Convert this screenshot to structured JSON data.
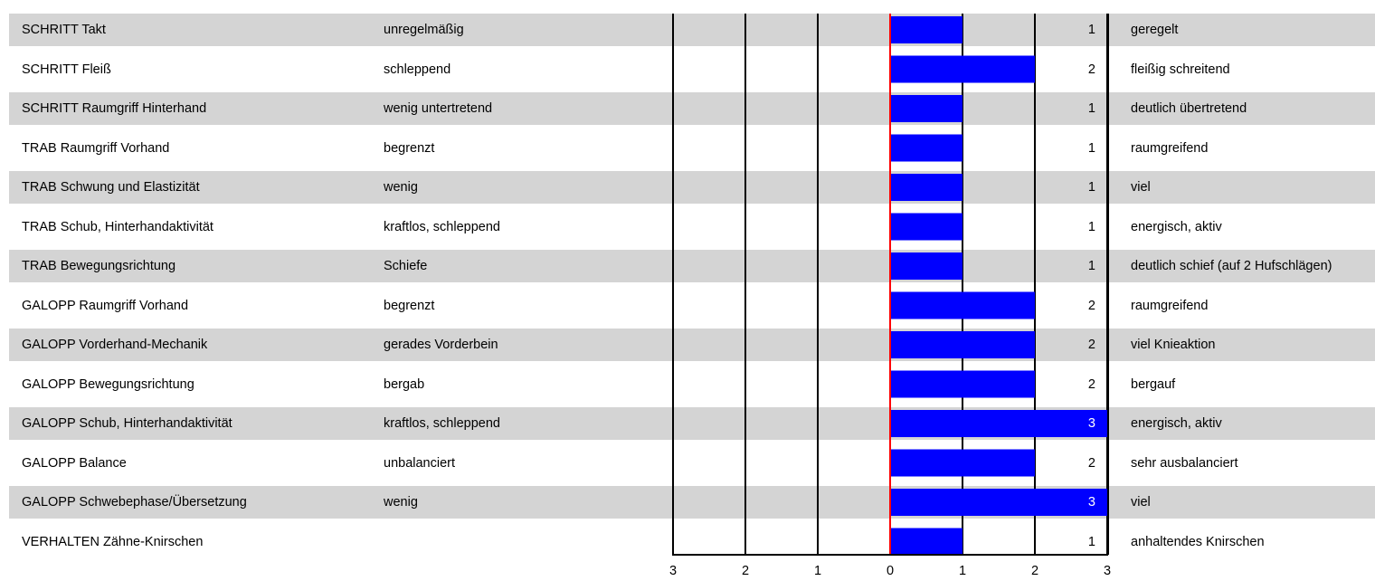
{
  "chart_data": {
    "type": "bar",
    "orientation": "horizontal",
    "xlim": [
      -3,
      3
    ],
    "x_ticks": [
      "3",
      "2",
      "1",
      "0",
      "1",
      "2",
      "3"
    ],
    "grid": true,
    "colors": {
      "bar": "#0000ff",
      "stripe": "#d4d4d4",
      "zero_line": "#ff0000",
      "grid": "#000000",
      "value_on_bar": "#ffffff"
    },
    "rows": [
      {
        "category": "SCHRITT Takt",
        "left_label": "unregelmäßig",
        "right_label": "geregelt",
        "value": 1,
        "value_label": "1"
      },
      {
        "category": "SCHRITT Fleiß",
        "left_label": "schleppend",
        "right_label": "fleißig schreitend",
        "value": 2,
        "value_label": "2"
      },
      {
        "category": "SCHRITT Raumgriff Hinterhand",
        "left_label": "wenig untertretend",
        "right_label": "deutlich übertretend",
        "value": 1,
        "value_label": "1"
      },
      {
        "category": "TRAB Raumgriff Vorhand",
        "left_label": "begrenzt",
        "right_label": "raumgreifend",
        "value": 1,
        "value_label": "1"
      },
      {
        "category": "TRAB Schwung und Elastizität",
        "left_label": "wenig",
        "right_label": "viel",
        "value": 1,
        "value_label": "1"
      },
      {
        "category": "TRAB Schub, Hinterhandaktivität",
        "left_label": "kraftlos, schleppend",
        "right_label": "energisch, aktiv",
        "value": 1,
        "value_label": "1"
      },
      {
        "category": "TRAB Bewegungsrichtung",
        "left_label": "Schiefe",
        "right_label": "deutlich schief (auf 2 Hufschlägen)",
        "value": 1,
        "value_label": "1"
      },
      {
        "category": "GALOPP Raumgriff Vorhand",
        "left_label": "begrenzt",
        "right_label": "raumgreifend",
        "value": 2,
        "value_label": "2"
      },
      {
        "category": "GALOPP Vorderhand-Mechanik",
        "left_label": "gerades Vorderbein",
        "right_label": "viel Knieaktion",
        "value": 2,
        "value_label": "2"
      },
      {
        "category": "GALOPP Bewegungsrichtung",
        "left_label": "bergab",
        "right_label": "bergauf",
        "value": 2,
        "value_label": "2"
      },
      {
        "category": "GALOPP Schub, Hinterhandaktivität",
        "left_label": "kraftlos, schleppend",
        "right_label": "energisch, aktiv",
        "value": 3,
        "value_label": "3"
      },
      {
        "category": "GALOPP Balance",
        "left_label": "unbalanciert",
        "right_label": "sehr ausbalanciert",
        "value": 2,
        "value_label": "2"
      },
      {
        "category": "GALOPP Schwebephase/Übersetzung",
        "left_label": "wenig",
        "right_label": "viel",
        "value": 3,
        "value_label": "3"
      },
      {
        "category": "VERHALTEN Zähne-Knirschen",
        "left_label": "",
        "right_label": "anhaltendes Knirschen",
        "value": 1,
        "value_label": "1"
      }
    ]
  }
}
